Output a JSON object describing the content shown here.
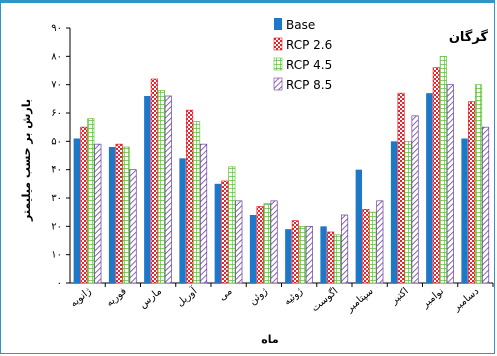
{
  "chart_data": {
    "type": "bar",
    "title": "گرگان",
    "xlabel": "ماه",
    "ylabel": "بارش بر حسب میلیمتر",
    "ylim": [
      0,
      90
    ],
    "yticks": [
      0,
      10,
      20,
      30,
      40,
      50,
      60,
      70,
      80,
      90
    ],
    "ytick_labels": [
      "۰",
      "۱۰",
      "۲۰",
      "۳۰",
      "۴۰",
      "۵۰",
      "۶۰",
      "۷۰",
      "۸۰",
      "۹۰"
    ],
    "categories": [
      "ژانویه",
      "فوریه",
      "مارس",
      "آوریل",
      "می",
      "ژوئن",
      "ژوئیه",
      "اگوست",
      "سپتامبر",
      "اکتبر",
      "نوامبر",
      "دسامبر"
    ],
    "series": [
      {
        "name": "Base",
        "values": [
          51,
          48,
          66,
          44,
          35,
          24,
          19,
          20,
          40,
          50,
          67,
          51
        ]
      },
      {
        "name": "RCP 2.6",
        "values": [
          55,
          49,
          72,
          61,
          36,
          27,
          22,
          18,
          26,
          67,
          76,
          64
        ]
      },
      {
        "name": "RCP 4.5",
        "values": [
          58,
          48,
          68,
          57,
          41,
          28,
          20,
          17,
          25,
          50,
          80,
          70
        ]
      },
      {
        "name": "RCP 8.5",
        "values": [
          49,
          40,
          66,
          49,
          29,
          29,
          20,
          24,
          29,
          59,
          70,
          55
        ]
      }
    ],
    "legend_position": "top-center",
    "grid": false,
    "colors": {
      "base": "#1f77c8",
      "rcp26": "#e8232b",
      "rcp45": "#5fbf3b",
      "rcp85": "#6a3fa0",
      "frame": "#2f95c9"
    }
  }
}
